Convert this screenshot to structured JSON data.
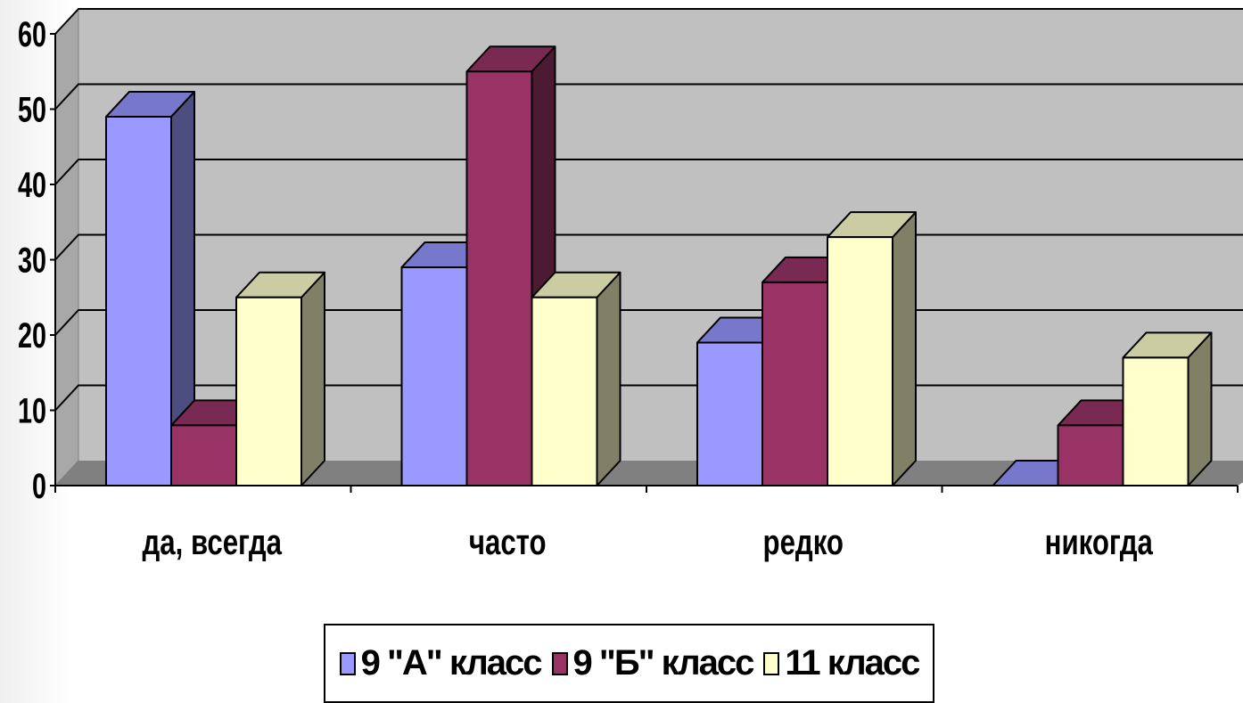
{
  "chart_data": {
    "type": "bar",
    "variant": "3d-clustered-column",
    "title": "",
    "xlabel": "",
    "ylabel": "",
    "categories": [
      "да, всегда",
      "часто",
      "редко",
      "никогда"
    ],
    "series": [
      {
        "name": "9 \"А\" класс",
        "values": [
          49,
          29,
          19,
          0
        ],
        "color": "#9999ff",
        "side_color": "#4d4d80",
        "top_color": "#7777cc"
      },
      {
        "name": "9 \"Б\" класс",
        "values": [
          8,
          55,
          27,
          8
        ],
        "color": "#993366",
        "side_color": "#4d1a33",
        "top_color": "#7a2952"
      },
      {
        "name": "11 класс",
        "values": [
          25,
          25,
          33,
          17
        ],
        "color": "#ffffcc",
        "side_color": "#808066",
        "top_color": "#cccca3"
      }
    ],
    "ylim": [
      0,
      60
    ],
    "yticks": [
      "0",
      "10",
      "20",
      "30",
      "40",
      "50",
      "60"
    ],
    "grid": true,
    "wall_color": "#c0c0c0",
    "floor_color": "#808080",
    "legend_position": "bottom"
  }
}
